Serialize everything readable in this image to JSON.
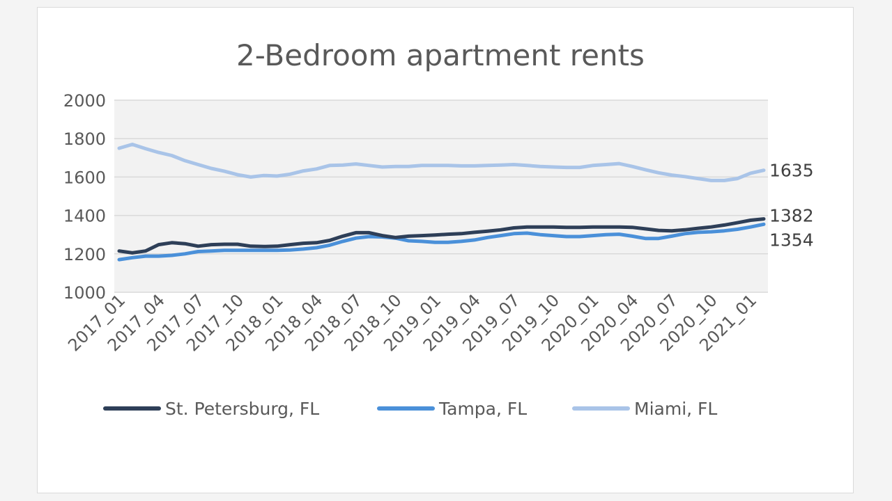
{
  "chart_data": {
    "type": "line",
    "title": "2-Bedroom apartment rents",
    "xlabel": "",
    "ylabel": "",
    "ylim": [
      1000,
      2000
    ],
    "yticks": [
      "1000",
      "1200",
      "1400",
      "1600",
      "1800",
      "2000"
    ],
    "xtick_labels": [
      "2017_01",
      "2017_04",
      "2017_07",
      "2017_10",
      "2018_01",
      "2018_04",
      "2018_07",
      "2018_10",
      "2019_01",
      "2019_04",
      "2019_07",
      "2019_10",
      "2020_01",
      "2020_04",
      "2020_07",
      "2020_10",
      "2021_01"
    ],
    "x": [
      "2017_01",
      "2017_02",
      "2017_03",
      "2017_04",
      "2017_05",
      "2017_06",
      "2017_07",
      "2017_08",
      "2017_09",
      "2017_10",
      "2017_11",
      "2017_12",
      "2018_01",
      "2018_02",
      "2018_03",
      "2018_04",
      "2018_05",
      "2018_06",
      "2018_07",
      "2018_08",
      "2018_09",
      "2018_10",
      "2018_11",
      "2018_12",
      "2019_01",
      "2019_02",
      "2019_03",
      "2019_04",
      "2019_05",
      "2019_06",
      "2019_07",
      "2019_08",
      "2019_09",
      "2019_10",
      "2019_11",
      "2019_12",
      "2020_01",
      "2020_02",
      "2020_03",
      "2020_04",
      "2020_05",
      "2020_06",
      "2020_07",
      "2020_08",
      "2020_09",
      "2020_10",
      "2020_11",
      "2020_12",
      "2021_01",
      "2021_02"
    ],
    "grid": true,
    "legend_position": "bottom",
    "background": "#f2f2f2",
    "series": [
      {
        "name": "St. Petersburg, FL",
        "color": "#2e3f58",
        "end_label": "1382",
        "values": [
          1215,
          1205,
          1215,
          1248,
          1258,
          1253,
          1240,
          1248,
          1250,
          1250,
          1240,
          1238,
          1240,
          1248,
          1255,
          1258,
          1270,
          1292,
          1310,
          1310,
          1295,
          1285,
          1292,
          1295,
          1298,
          1302,
          1305,
          1312,
          1318,
          1325,
          1335,
          1340,
          1340,
          1340,
          1338,
          1338,
          1340,
          1340,
          1340,
          1338,
          1330,
          1322,
          1320,
          1325,
          1333,
          1340,
          1350,
          1362,
          1375,
          1382
        ]
      },
      {
        "name": "Tampa, FL",
        "color": "#4a90d9",
        "end_label": "1354",
        "values": [
          1170,
          1180,
          1188,
          1188,
          1192,
          1200,
          1212,
          1215,
          1218,
          1218,
          1218,
          1218,
          1218,
          1220,
          1225,
          1232,
          1245,
          1265,
          1282,
          1290,
          1288,
          1282,
          1268,
          1265,
          1260,
          1260,
          1265,
          1272,
          1285,
          1295,
          1305,
          1308,
          1300,
          1295,
          1290,
          1290,
          1295,
          1300,
          1302,
          1292,
          1280,
          1280,
          1292,
          1305,
          1312,
          1315,
          1320,
          1328,
          1340,
          1354
        ]
      },
      {
        "name": "Miami, FL",
        "color": "#a9c4e8",
        "end_label": "1635",
        "values": [
          1750,
          1770,
          1748,
          1728,
          1712,
          1685,
          1665,
          1645,
          1630,
          1612,
          1600,
          1608,
          1605,
          1615,
          1632,
          1642,
          1660,
          1662,
          1668,
          1660,
          1652,
          1655,
          1655,
          1660,
          1660,
          1660,
          1658,
          1658,
          1660,
          1662,
          1665,
          1660,
          1655,
          1652,
          1650,
          1650,
          1660,
          1665,
          1670,
          1655,
          1638,
          1622,
          1610,
          1602,
          1592,
          1582,
          1582,
          1592,
          1620,
          1635
        ]
      }
    ]
  }
}
